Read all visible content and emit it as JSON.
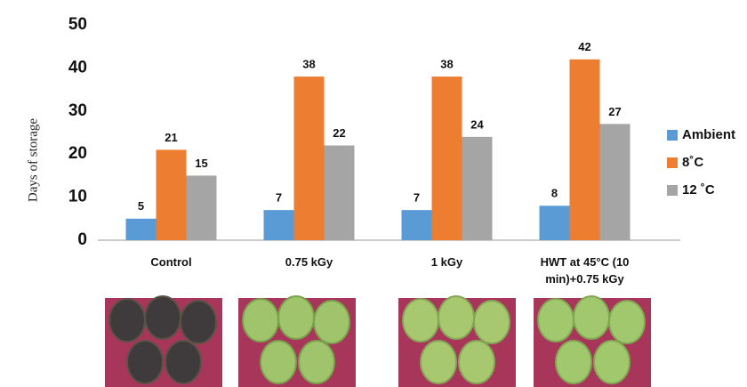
{
  "chart_data": {
    "type": "bar",
    "y_label": "Days of storage",
    "categories": [
      "Control",
      "0.75 kGy",
      "1 kGy",
      "HWT at 45°C (10 min)+0.75 kGy"
    ],
    "series": [
      {
        "name": "Ambient",
        "color": "#5b9bd5",
        "values": [
          5,
          7,
          7,
          8
        ]
      },
      {
        "name": "8˚C",
        "color": "#ed7d31",
        "values": [
          21,
          38,
          38,
          42
        ]
      },
      {
        "name": "12 ˚C",
        "color": "#a5a5a5",
        "values": [
          15,
          22,
          24,
          27
        ]
      }
    ],
    "ylim": [
      0,
      50
    ],
    "yticks": [
      0,
      10,
      20,
      30,
      40,
      50
    ],
    "grid": false,
    "legend": "right"
  }
}
